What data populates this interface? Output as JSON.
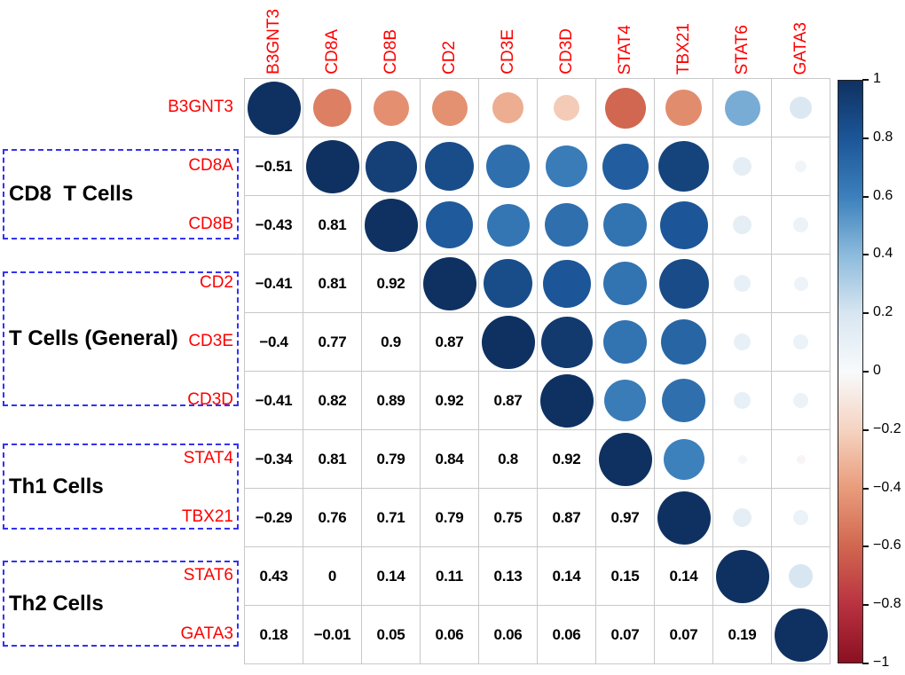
{
  "colors": {
    "gene_label": "#ff0000",
    "value_text": "#000000",
    "group_box_border": "#3333f0",
    "grid_line": "#c8c8c8",
    "background": "#ffffff",
    "colorbar_border": "#222222",
    "positive_max": "#0e3161",
    "negative_max": "#8b1021"
  },
  "chart_data": {
    "type": "heatmap",
    "variant": "correlation-matrix-corrplot",
    "title": "",
    "genes": [
      "B3GNT3",
      "CD8A",
      "CD8B",
      "CD2",
      "CD3E",
      "CD3D",
      "STAT4",
      "TBX21",
      "STAT6",
      "GATA3"
    ],
    "groups": [
      {
        "label": "CD8  T Cells",
        "genes": [
          "CD8A",
          "CD8B"
        ]
      },
      {
        "label": "T Cells (General)",
        "genes": [
          "CD2",
          "CD3E",
          "CD3D"
        ]
      },
      {
        "label": "Th1 Cells",
        "genes": [
          "STAT4",
          "TBX21"
        ]
      },
      {
        "label": "Th2 Cells",
        "genes": [
          "STAT6",
          "GATA3"
        ]
      }
    ],
    "lower_text": [
      [],
      [
        "−0.51"
      ],
      [
        "−0.43",
        "0.81"
      ],
      [
        "−0.41",
        "0.81",
        "0.92"
      ],
      [
        "−0.4",
        "0.77",
        "0.9",
        "0.87"
      ],
      [
        "−0.41",
        "0.82",
        "0.89",
        "0.92",
        "0.87"
      ],
      [
        "−0.34",
        "0.81",
        "0.79",
        "0.84",
        "0.8",
        "0.92"
      ],
      [
        "−0.29",
        "0.76",
        "0.71",
        "0.79",
        "0.75",
        "0.87",
        "0.97"
      ],
      [
        "0.43",
        "0",
        "0.14",
        "0.11",
        "0.13",
        "0.14",
        "0.15",
        "0.14"
      ],
      [
        "0.18",
        "−0.01",
        "0.05",
        "0.06",
        "0.06",
        "0.06",
        "0.07",
        "0.07",
        "0.19"
      ]
    ],
    "upper_circles": [
      [
        1,
        -0.51,
        -0.45,
        -0.44,
        -0.34,
        -0.23,
        -0.6,
        -0.46,
        0.45,
        0.18
      ],
      [
        1,
        0.92,
        0.85,
        0.68,
        0.62,
        0.76,
        0.9,
        0.12,
        0.05
      ],
      [
        1,
        0.78,
        0.65,
        0.68,
        0.66,
        0.8,
        0.12,
        0.08
      ],
      [
        1,
        0.85,
        0.8,
        0.66,
        0.86,
        0.1,
        0.07
      ],
      [
        1,
        0.95,
        0.66,
        0.73,
        0.1,
        0.08
      ],
      [
        1,
        0.62,
        0.68,
        0.1,
        0.08
      ],
      [
        1,
        0.6,
        0.03,
        -0.03
      ],
      [
        1,
        0.12,
        0.08
      ],
      [
        1,
        0.2
      ],
      [
        1
      ]
    ],
    "colorbar_ticks": [
      "1",
      "0.8",
      "0.6",
      "0.4",
      "0.2",
      "0",
      "−0.2",
      "−0.4",
      "−0.6",
      "−0.8",
      "−1"
    ],
    "range": [
      -1,
      1
    ],
    "legend_position": "right",
    "grid": true,
    "color_scale_stops": [
      [
        -1.0,
        "#8b1021"
      ],
      [
        -0.8,
        "#b93240"
      ],
      [
        -0.6,
        "#d16750"
      ],
      [
        -0.4,
        "#e99c7b"
      ],
      [
        -0.2,
        "#f5d3c1"
      ],
      [
        0.0,
        "#f8fafc"
      ],
      [
        0.2,
        "#d8e6f1"
      ],
      [
        0.4,
        "#8cbbdc"
      ],
      [
        0.6,
        "#3c80bc"
      ],
      [
        0.8,
        "#1c5698"
      ],
      [
        1.0,
        "#0e3161"
      ]
    ]
  }
}
